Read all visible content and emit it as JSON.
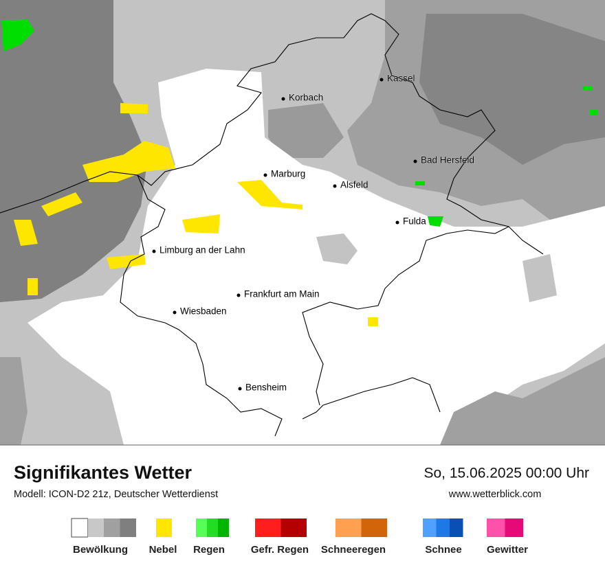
{
  "map": {
    "cities": [
      "Kassel",
      "Korbach",
      "Bad Hersfeld",
      "Marburg",
      "Alsfeld",
      "Fulda",
      "Limburg an der Lahn",
      "Frankfurt am Main",
      "Wiesbaden",
      "Bensheim"
    ]
  },
  "footer": {
    "title": "Signifikantes Wetter",
    "subtitle": "Modell: ICON-D2 21z, Deutscher Wetterdienst",
    "datetime": "So, 15.06.2025 00:00 Uhr",
    "website": "www.wetterblick.com"
  },
  "legend": [
    {
      "name": "Bewölkung",
      "colors": [
        "#ffffff",
        "#c8c8c8",
        "#a0a0a0",
        "#7f7f7f"
      ]
    },
    {
      "name": "Nebel",
      "colors": [
        "#ffe600"
      ]
    },
    {
      "name": "Regen",
      "colors": [
        "#55ff55",
        "#22dd22",
        "#00b400"
      ]
    },
    {
      "name": "Gefr. Regen",
      "colors": [
        "#ff1e1e",
        "#b40000"
      ]
    },
    {
      "name": "Schneeregen",
      "colors": [
        "#ffa050",
        "#d2640a"
      ]
    },
    {
      "name": "Schnee",
      "colors": [
        "#50a0ff",
        "#1e78e6",
        "#0a50b4"
      ]
    },
    {
      "name": "Gewitter",
      "colors": [
        "#ff50aa",
        "#e60a78"
      ]
    }
  ]
}
